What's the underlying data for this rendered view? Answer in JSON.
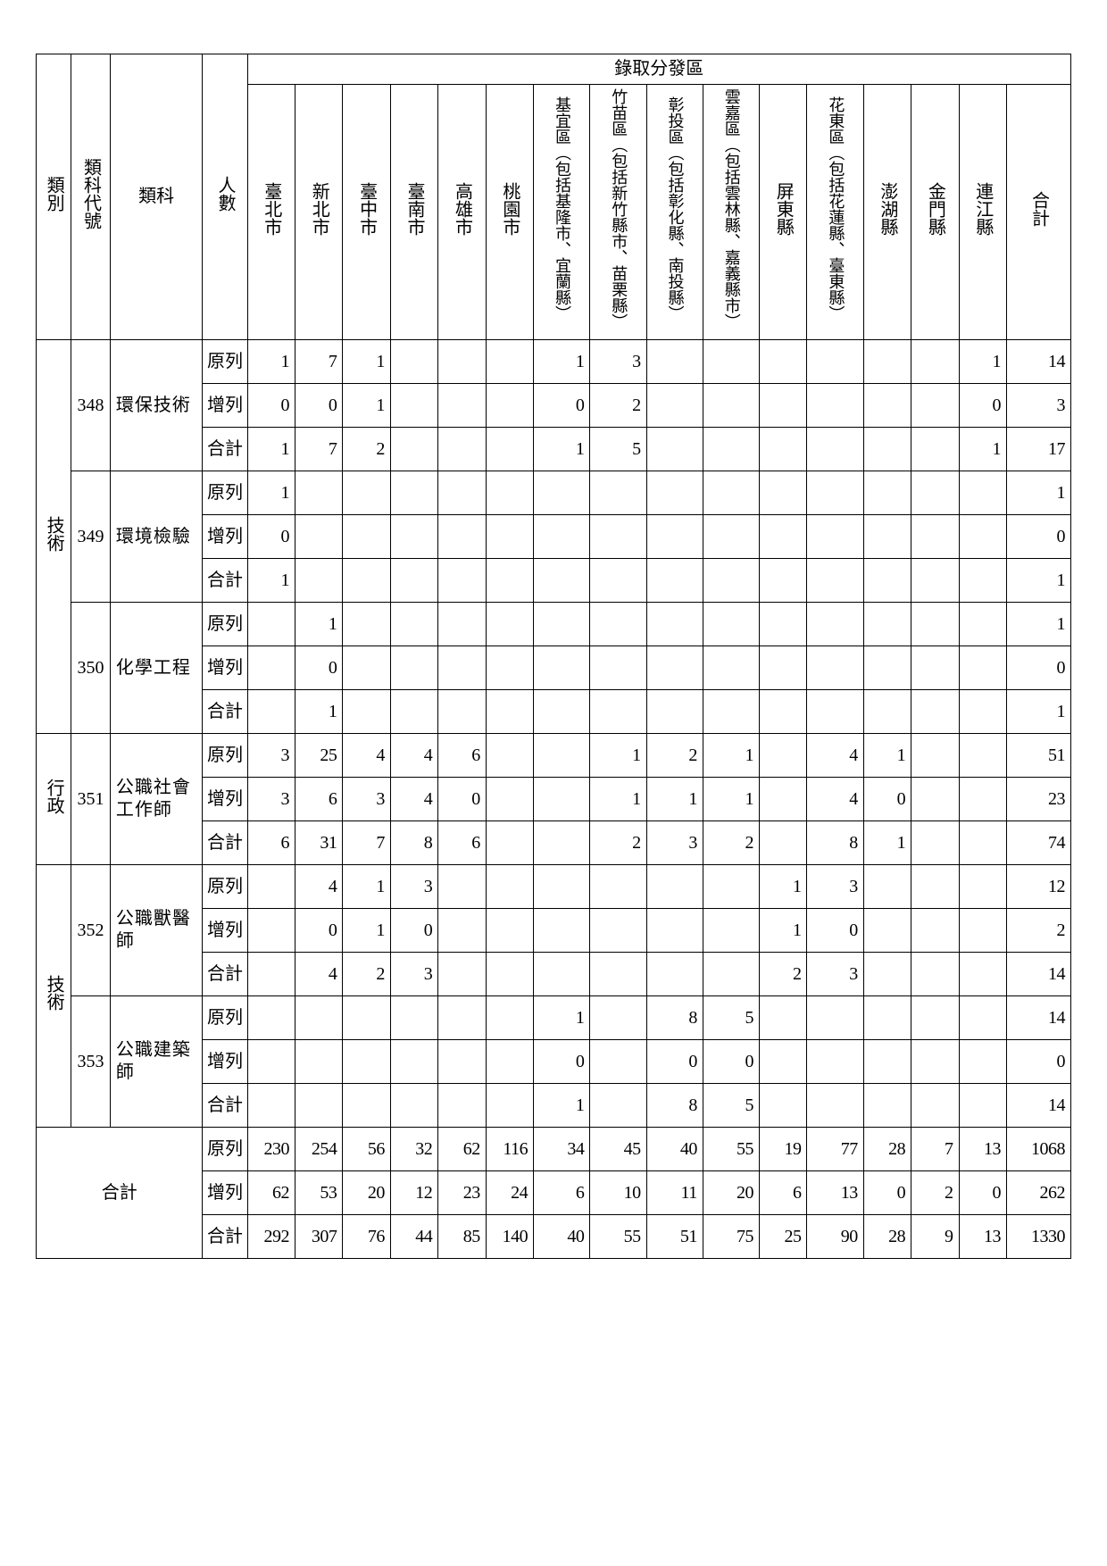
{
  "headers": {
    "category": "類別",
    "code": "類科代號",
    "subject": "類科",
    "people": "人數",
    "admit_group": "錄取分發區",
    "regions": [
      "臺北市",
      "新北市",
      "臺中市",
      "臺南市",
      "高雄市",
      "桃園市",
      "基宜區（包括基隆市、宜蘭縣）",
      "竹苗區（包括新竹縣市、苗栗縣）",
      "彰投區（包括彰化縣、南投縣）",
      "雲嘉區（包括雲林縣、嘉義縣市）",
      "屏東縣",
      "花東區（包括花蓮縣、臺東縣）",
      "澎湖縣",
      "金門縣",
      "連江縣"
    ],
    "total": "合計"
  },
  "rowlabels": {
    "orig": "原列",
    "add": "增列",
    "sum": "合計"
  },
  "groups": [
    {
      "group": "技術",
      "subjects": [
        {
          "code": "348",
          "name": "環保技術",
          "rows": {
            "orig": [
              "1",
              "7",
              "1",
              "",
              "",
              "",
              "1",
              "3",
              "",
              "",
              "",
              "",
              "",
              "",
              "1",
              "14"
            ],
            "add": [
              "0",
              "0",
              "1",
              "",
              "",
              "",
              "0",
              "2",
              "",
              "",
              "",
              "",
              "",
              "",
              "0",
              "3"
            ],
            "sum": [
              "1",
              "7",
              "2",
              "",
              "",
              "",
              "1",
              "5",
              "",
              "",
              "",
              "",
              "",
              "",
              "1",
              "17"
            ]
          }
        },
        {
          "code": "349",
          "name": "環境檢驗",
          "rows": {
            "orig": [
              "1",
              "",
              "",
              "",
              "",
              "",
              "",
              "",
              "",
              "",
              "",
              "",
              "",
              "",
              "",
              "1"
            ],
            "add": [
              "0",
              "",
              "",
              "",
              "",
              "",
              "",
              "",
              "",
              "",
              "",
              "",
              "",
              "",
              "",
              "0"
            ],
            "sum": [
              "1",
              "",
              "",
              "",
              "",
              "",
              "",
              "",
              "",
              "",
              "",
              "",
              "",
              "",
              "",
              "1"
            ]
          }
        },
        {
          "code": "350",
          "name": "化學工程",
          "rows": {
            "orig": [
              "",
              "1",
              "",
              "",
              "",
              "",
              "",
              "",
              "",
              "",
              "",
              "",
              "",
              "",
              "",
              "1"
            ],
            "add": [
              "",
              "0",
              "",
              "",
              "",
              "",
              "",
              "",
              "",
              "",
              "",
              "",
              "",
              "",
              "",
              "0"
            ],
            "sum": [
              "",
              "1",
              "",
              "",
              "",
              "",
              "",
              "",
              "",
              "",
              "",
              "",
              "",
              "",
              "",
              "1"
            ]
          }
        }
      ]
    },
    {
      "group": "行政",
      "subjects": [
        {
          "code": "351",
          "name": "公職社會工作師",
          "rows": {
            "orig": [
              "3",
              "25",
              "4",
              "4",
              "6",
              "",
              "",
              "1",
              "2",
              "1",
              "",
              "4",
              "1",
              "",
              "",
              "51"
            ],
            "add": [
              "3",
              "6",
              "3",
              "4",
              "0",
              "",
              "",
              "1",
              "1",
              "1",
              "",
              "4",
              "0",
              "",
              "",
              "23"
            ],
            "sum": [
              "6",
              "31",
              "7",
              "8",
              "6",
              "",
              "",
              "2",
              "3",
              "2",
              "",
              "8",
              "1",
              "",
              "",
              "74"
            ]
          }
        }
      ]
    },
    {
      "group": "技術",
      "subjects": [
        {
          "code": "352",
          "name": "公職獸醫師",
          "rows": {
            "orig": [
              "",
              "4",
              "1",
              "3",
              "",
              "",
              "",
              "",
              "",
              "",
              "1",
              "3",
              "",
              "",
              "",
              "12"
            ],
            "add": [
              "",
              "0",
              "1",
              "0",
              "",
              "",
              "",
              "",
              "",
              "",
              "1",
              "0",
              "",
              "",
              "",
              "2"
            ],
            "sum": [
              "",
              "4",
              "2",
              "3",
              "",
              "",
              "",
              "",
              "",
              "",
              "2",
              "3",
              "",
              "",
              "",
              "14"
            ]
          }
        },
        {
          "code": "353",
          "name": "公職建築師",
          "rows": {
            "orig": [
              "",
              "",
              "",
              "",
              "",
              "",
              "1",
              "",
              "8",
              "5",
              "",
              "",
              "",
              "",
              "",
              "14"
            ],
            "add": [
              "",
              "",
              "",
              "",
              "",
              "",
              "0",
              "",
              "0",
              "0",
              "",
              "",
              "",
              "",
              "",
              "0"
            ],
            "sum": [
              "",
              "",
              "",
              "",
              "",
              "",
              "1",
              "",
              "8",
              "5",
              "",
              "",
              "",
              "",
              "",
              "14"
            ]
          }
        }
      ]
    }
  ],
  "grandtotal": {
    "label": "合計",
    "rows": {
      "orig": [
        "230",
        "254",
        "56",
        "32",
        "62",
        "116",
        "34",
        "45",
        "40",
        "55",
        "19",
        "77",
        "28",
        "7",
        "13",
        "1068"
      ],
      "add": [
        "62",
        "53",
        "20",
        "12",
        "23",
        "24",
        "6",
        "10",
        "11",
        "20",
        "6",
        "13",
        "0",
        "2",
        "0",
        "262"
      ],
      "sum": [
        "292",
        "307",
        "76",
        "44",
        "85",
        "140",
        "40",
        "55",
        "51",
        "75",
        "25",
        "90",
        "28",
        "9",
        "13",
        "1330"
      ]
    }
  },
  "style": {
    "border_color": "#000000",
    "background_color": "#ffffff",
    "font_size": 20,
    "header_font_size": 20,
    "number_font_family": "Times New Roman"
  }
}
